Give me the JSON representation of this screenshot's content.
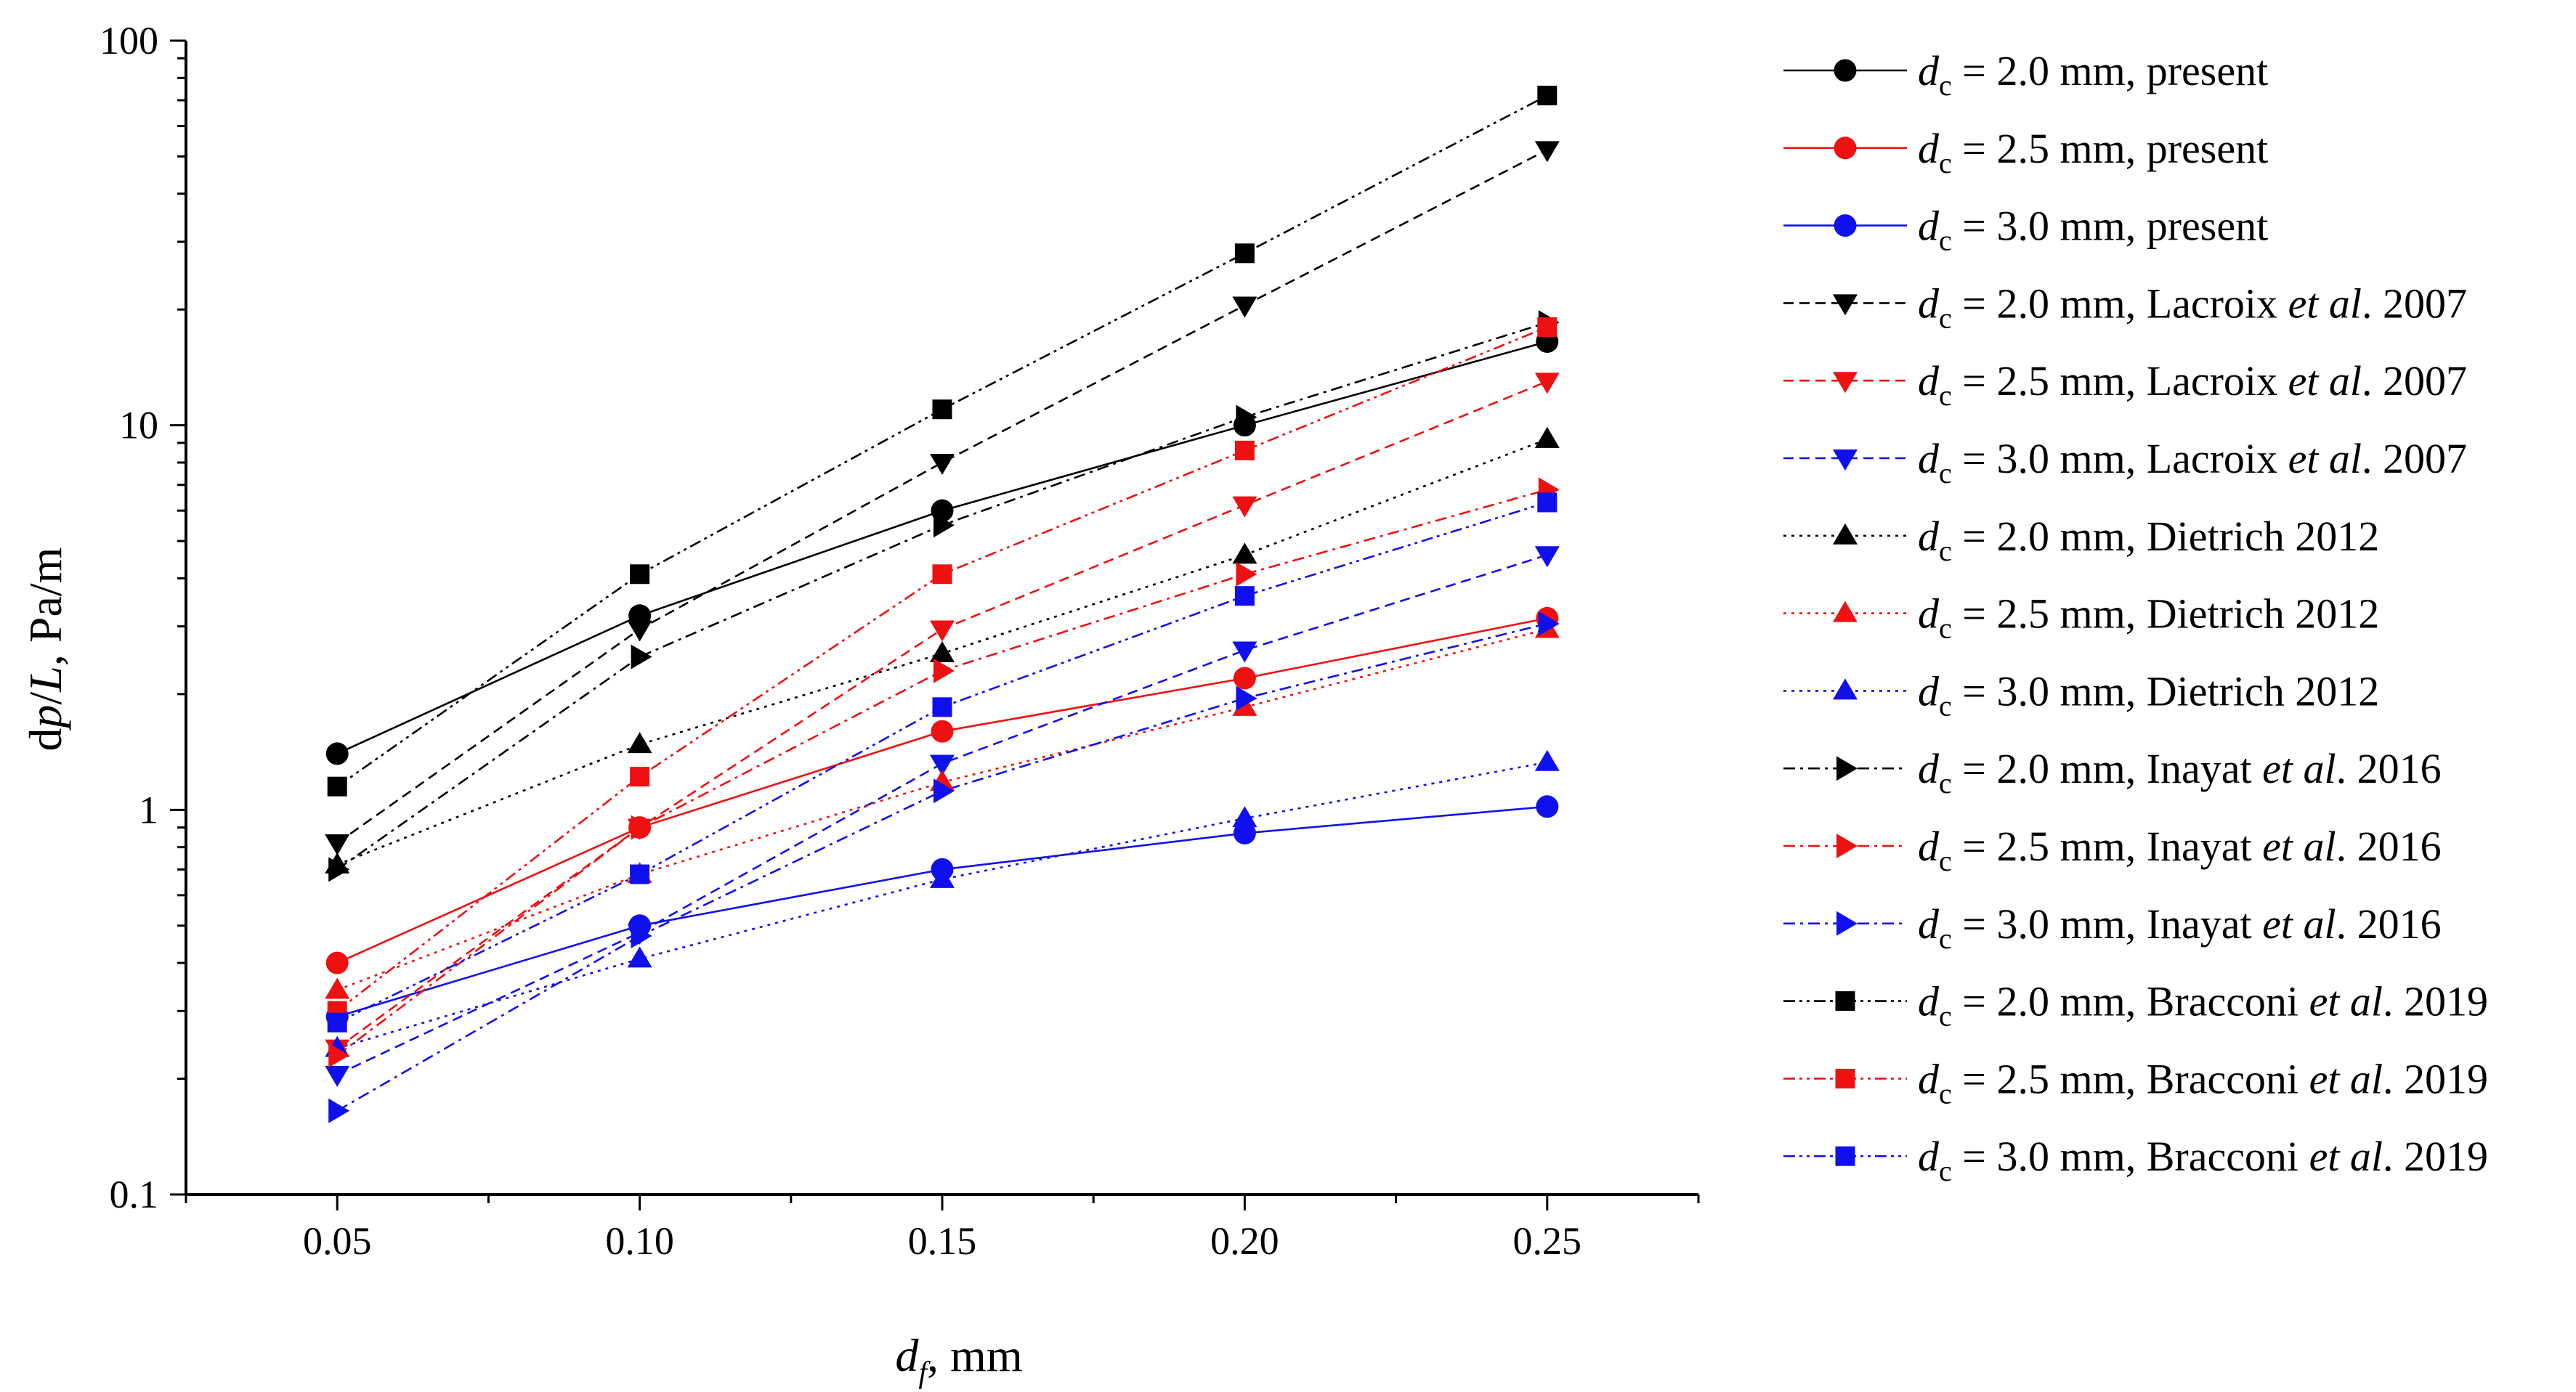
{
  "chart_data": {
    "type": "line",
    "title": "",
    "xlabel": {
      "symbol": "d",
      "sub": "f",
      "unit": ", mm"
    },
    "ylabel": {
      "prefix": "d",
      "p": "p",
      "slash": "/",
      "L": "L",
      "unit": ", Pa/m"
    },
    "yscale": "log",
    "xlim": [
      0.025,
      0.275
    ],
    "ylim": [
      0.1,
      100
    ],
    "x_ticks": [
      0.05,
      0.1,
      0.15,
      0.2,
      0.25
    ],
    "x_tick_labels": [
      "0.05",
      "0.10",
      "0.15",
      "0.20",
      "0.25"
    ],
    "y_ticks": [
      0.1,
      1,
      10,
      100
    ],
    "y_tick_labels": [
      "0.1",
      "1",
      "10",
      "100"
    ],
    "x": [
      0.05,
      0.1,
      0.15,
      0.2,
      0.25
    ],
    "legend_position": "right",
    "colors": {
      "black": "#000000",
      "red": "#ee1111",
      "blue": "#1010ee"
    },
    "series": [
      {
        "name": "dc = 2.0 mm, present",
        "dc": "2.0",
        "source": "present",
        "italic": "",
        "year": "",
        "color": "black",
        "marker": "circle",
        "dash": "solid",
        "values": [
          1.4,
          3.2,
          6.0,
          10.0,
          16.5
        ]
      },
      {
        "name": "dc = 2.5 mm, present",
        "dc": "2.5",
        "source": "present",
        "italic": "",
        "year": "",
        "color": "red",
        "marker": "circle",
        "dash": "solid",
        "values": [
          0.4,
          0.9,
          1.6,
          2.2,
          3.15
        ]
      },
      {
        "name": "dc = 3.0 mm, present",
        "dc": "3.0",
        "source": "present",
        "italic": "",
        "year": "",
        "color": "blue",
        "marker": "circle",
        "dash": "solid",
        "values": [
          0.29,
          0.5,
          0.7,
          0.87,
          1.02
        ]
      },
      {
        "name": "dc = 2.0 mm, Lacroix et al. 2007",
        "dc": "2.0",
        "source": "Lacroix ",
        "italic": "et al",
        "year": ". 2007",
        "color": "black",
        "marker": "triangle-down",
        "dash": "dash",
        "values": [
          0.82,
          2.95,
          8.0,
          20.5,
          52.0
        ]
      },
      {
        "name": "dc = 2.5 mm, Lacroix et al. 2007",
        "dc": "2.5",
        "source": "Lacroix ",
        "italic": "et al",
        "year": ". 2007",
        "color": "red",
        "marker": "triangle-down",
        "dash": "dash",
        "values": [
          0.24,
          0.9,
          2.95,
          6.2,
          13.0
        ]
      },
      {
        "name": "dc = 3.0 mm, Lacroix et al. 2007",
        "dc": "3.0",
        "source": "Lacroix ",
        "italic": "et al",
        "year": ". 2007",
        "color": "blue",
        "marker": "triangle-down",
        "dash": "dash",
        "values": [
          0.205,
          0.48,
          1.32,
          2.6,
          4.6
        ]
      },
      {
        "name": "dc = 2.0 mm, Dietrich 2012",
        "dc": "2.0",
        "source": "Dietrich 2012",
        "italic": "",
        "year": "",
        "color": "black",
        "marker": "triangle-up",
        "dash": "dot",
        "values": [
          0.72,
          1.48,
          2.55,
          4.6,
          9.2
        ]
      },
      {
        "name": "dc = 2.5 mm, Dietrich 2012",
        "dc": "2.5",
        "source": "Dietrich 2012",
        "italic": "",
        "year": "",
        "color": "red",
        "marker": "triangle-up",
        "dash": "dot",
        "values": [
          0.34,
          0.68,
          1.18,
          1.85,
          2.95
        ]
      },
      {
        "name": "dc = 3.0 mm, Dietrich 2012",
        "dc": "3.0",
        "source": "Dietrich 2012",
        "italic": "",
        "year": "",
        "color": "blue",
        "marker": "triangle-up",
        "dash": "dot",
        "values": [
          0.24,
          0.41,
          0.66,
          0.95,
          1.33
        ]
      },
      {
        "name": "dc = 2.0 mm, Inayat et al. 2016",
        "dc": "2.0",
        "source": "Inayat ",
        "italic": "et al",
        "year": ". 2016",
        "color": "black",
        "marker": "triangle-right",
        "dash": "dashdot",
        "values": [
          0.7,
          2.5,
          5.5,
          10.5,
          18.5
        ]
      },
      {
        "name": "dc = 2.5 mm, Inayat et al. 2016",
        "dc": "2.5",
        "source": "Inayat ",
        "italic": "et al",
        "year": ". 2016",
        "color": "red",
        "marker": "triangle-right",
        "dash": "dashdot",
        "values": [
          0.23,
          0.9,
          2.3,
          4.1,
          6.8
        ]
      },
      {
        "name": "dc = 3.0 mm, Inayat et al. 2016",
        "dc": "3.0",
        "source": "Inayat ",
        "italic": "et al",
        "year": ". 2016",
        "color": "blue",
        "marker": "triangle-right",
        "dash": "dashdot",
        "values": [
          0.165,
          0.47,
          1.12,
          1.95,
          3.05
        ]
      },
      {
        "name": "dc = 2.0 mm, Bracconi et al. 2019",
        "dc": "2.0",
        "source": "Bracconi ",
        "italic": "et al",
        "year": ". 2019",
        "color": "black",
        "marker": "square",
        "dash": "dashdotdot",
        "values": [
          1.15,
          4.1,
          11.0,
          28.0,
          72.0
        ]
      },
      {
        "name": "dc = 2.5 mm, Bracconi et al. 2019",
        "dc": "2.5",
        "source": "Bracconi ",
        "italic": "et al",
        "year": ". 2019",
        "color": "red",
        "marker": "square",
        "dash": "dashdotdot",
        "values": [
          0.3,
          1.22,
          4.1,
          8.6,
          18.0
        ]
      },
      {
        "name": "dc = 3.0 mm, Bracconi et al. 2019",
        "dc": "3.0",
        "source": "Bracconi ",
        "italic": "et al",
        "year": ". 2019",
        "color": "blue",
        "marker": "square",
        "dash": "dashdotdot",
        "values": [
          0.28,
          0.68,
          1.85,
          3.6,
          6.3
        ]
      }
    ],
    "legend_d": "d",
    "legend_sub": "c",
    "legend_eq": " = ",
    "legend_mm": " mm, "
  }
}
